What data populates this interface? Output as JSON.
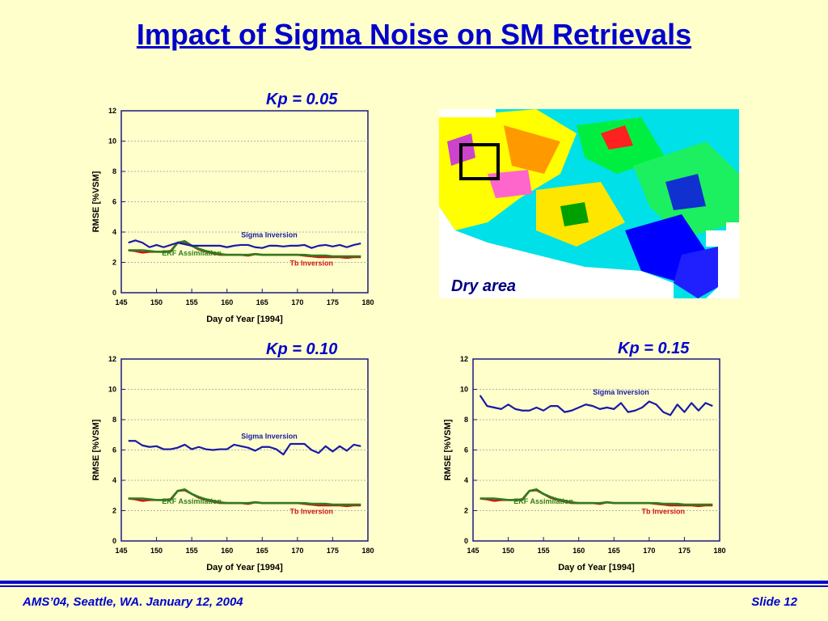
{
  "slide": {
    "title": "Impact of Sigma Noise on SM Retrievals",
    "map_caption": "Dry area",
    "footer_left": "AMS’04, Seattle, WA. January 12, 2004",
    "footer_right": "Slide 12"
  },
  "colors": {
    "title": "#0000cc",
    "background": "#ffffcc",
    "sigma": "#1a1aa6",
    "ekf": "#2e7d1e",
    "tb": "#d01414"
  },
  "chart_data": [
    {
      "type": "line",
      "title": "Kp = 0.05",
      "xlabel": "Day of Year [1994]",
      "ylabel": "RMSE [%VSM]",
      "xlim": [
        145,
        180
      ],
      "ylim": [
        0,
        12
      ],
      "xticks": [
        145,
        150,
        155,
        160,
        165,
        170,
        175,
        180
      ],
      "yticks": [
        0,
        2,
        4,
        6,
        8,
        10,
        12
      ],
      "grid": "horizontal",
      "x": [
        146,
        147,
        148,
        149,
        150,
        151,
        152,
        153,
        154,
        155,
        156,
        157,
        158,
        159,
        160,
        161,
        162,
        163,
        164,
        165,
        166,
        167,
        168,
        169,
        170,
        171,
        172,
        173,
        174,
        175,
        176,
        177,
        178,
        179
      ],
      "series": [
        {
          "name": "Sigma Inversion",
          "values": [
            3.3,
            3.45,
            3.3,
            3.0,
            3.15,
            3.0,
            3.15,
            3.3,
            3.2,
            3.1,
            3.1,
            3.1,
            3.1,
            3.1,
            3.0,
            3.1,
            3.15,
            3.15,
            3.0,
            2.95,
            3.1,
            3.1,
            3.05,
            3.1,
            3.1,
            3.15,
            2.95,
            3.1,
            3.15,
            3.05,
            3.15,
            3.0,
            3.15,
            3.25
          ]
        },
        {
          "name": "EKF Assimilation",
          "values": [
            2.8,
            2.8,
            2.8,
            2.75,
            2.7,
            2.7,
            2.7,
            3.3,
            3.4,
            3.1,
            2.9,
            2.75,
            2.65,
            2.55,
            2.5,
            2.5,
            2.5,
            2.5,
            2.55,
            2.5,
            2.5,
            2.5,
            2.5,
            2.5,
            2.5,
            2.5,
            2.45,
            2.45,
            2.45,
            2.4,
            2.4,
            2.4,
            2.4,
            2.4
          ]
        },
        {
          "name": "Tb Inversion",
          "values": [
            2.8,
            2.75,
            2.65,
            2.7,
            2.7,
            2.7,
            2.75,
            3.3,
            3.35,
            3.1,
            2.85,
            2.7,
            2.6,
            2.5,
            2.5,
            2.5,
            2.5,
            2.45,
            2.55,
            2.5,
            2.5,
            2.5,
            2.5,
            2.5,
            2.5,
            2.45,
            2.4,
            2.35,
            2.35,
            2.35,
            2.35,
            2.3,
            2.35,
            2.35
          ]
        }
      ]
    },
    {
      "type": "line",
      "title": "Kp = 0.10",
      "xlabel": "Day of Year [1994]",
      "ylabel": "RMSE [%VSM]",
      "xlim": [
        145,
        180
      ],
      "ylim": [
        0,
        12
      ],
      "xticks": [
        145,
        150,
        155,
        160,
        165,
        170,
        175,
        180
      ],
      "yticks": [
        0,
        2,
        4,
        6,
        8,
        10,
        12
      ],
      "grid": "horizontal",
      "x": [
        146,
        147,
        148,
        149,
        150,
        151,
        152,
        153,
        154,
        155,
        156,
        157,
        158,
        159,
        160,
        161,
        162,
        163,
        164,
        165,
        166,
        167,
        168,
        169,
        170,
        171,
        172,
        173,
        174,
        175,
        176,
        177,
        178,
        179
      ],
      "series": [
        {
          "name": "Sigma Inversion",
          "values": [
            6.6,
            6.6,
            6.3,
            6.2,
            6.25,
            6.05,
            6.05,
            6.15,
            6.35,
            6.05,
            6.2,
            6.05,
            6.0,
            6.05,
            6.05,
            6.35,
            6.25,
            6.15,
            5.95,
            6.2,
            6.2,
            6.05,
            5.7,
            6.4,
            6.4,
            6.4,
            6.0,
            5.8,
            6.25,
            5.9,
            6.25,
            5.95,
            6.35,
            6.25
          ]
        },
        {
          "name": "EKF Assimilation",
          "values": [
            2.8,
            2.8,
            2.8,
            2.75,
            2.7,
            2.7,
            2.7,
            3.3,
            3.4,
            3.1,
            2.9,
            2.75,
            2.65,
            2.55,
            2.5,
            2.5,
            2.5,
            2.5,
            2.55,
            2.5,
            2.5,
            2.5,
            2.5,
            2.5,
            2.5,
            2.5,
            2.45,
            2.45,
            2.45,
            2.4,
            2.4,
            2.4,
            2.4,
            2.4
          ]
        },
        {
          "name": "Tb Inversion",
          "values": [
            2.8,
            2.75,
            2.65,
            2.7,
            2.7,
            2.7,
            2.75,
            3.3,
            3.35,
            3.1,
            2.85,
            2.7,
            2.6,
            2.5,
            2.5,
            2.5,
            2.5,
            2.45,
            2.55,
            2.5,
            2.5,
            2.5,
            2.5,
            2.5,
            2.5,
            2.45,
            2.4,
            2.35,
            2.35,
            2.35,
            2.35,
            2.3,
            2.35,
            2.35
          ]
        }
      ]
    },
    {
      "type": "line",
      "title": "Kp = 0.15",
      "xlabel": "Day of Year [1994]",
      "ylabel": "RMSE [%VSM]",
      "xlim": [
        145,
        180
      ],
      "ylim": [
        0,
        12
      ],
      "xticks": [
        145,
        150,
        155,
        160,
        165,
        170,
        175,
        180
      ],
      "yticks": [
        0,
        2,
        4,
        6,
        8,
        10,
        12
      ],
      "grid": "horizontal",
      "x": [
        146,
        147,
        148,
        149,
        150,
        151,
        152,
        153,
        154,
        155,
        156,
        157,
        158,
        159,
        160,
        161,
        162,
        163,
        164,
        165,
        166,
        167,
        168,
        169,
        170,
        171,
        172,
        173,
        174,
        175,
        176,
        177,
        178,
        179
      ],
      "series": [
        {
          "name": "Sigma Inversion",
          "values": [
            9.6,
            8.9,
            8.8,
            8.7,
            9.0,
            8.7,
            8.6,
            8.6,
            8.8,
            8.6,
            8.9,
            8.9,
            8.5,
            8.6,
            8.8,
            9.0,
            8.9,
            8.7,
            8.8,
            8.7,
            9.1,
            8.5,
            8.6,
            8.8,
            9.2,
            9.0,
            8.5,
            8.3,
            9.0,
            8.5,
            9.1,
            8.6,
            9.1,
            8.9
          ]
        },
        {
          "name": "EKF Assimilation",
          "values": [
            2.8,
            2.8,
            2.8,
            2.75,
            2.7,
            2.7,
            2.7,
            3.3,
            3.4,
            3.1,
            2.9,
            2.75,
            2.65,
            2.55,
            2.5,
            2.5,
            2.5,
            2.5,
            2.55,
            2.5,
            2.5,
            2.5,
            2.5,
            2.5,
            2.5,
            2.5,
            2.45,
            2.45,
            2.45,
            2.4,
            2.4,
            2.4,
            2.4,
            2.4
          ]
        },
        {
          "name": "Tb Inversion",
          "values": [
            2.8,
            2.75,
            2.65,
            2.7,
            2.7,
            2.7,
            2.75,
            3.3,
            3.35,
            3.1,
            2.85,
            2.7,
            2.6,
            2.5,
            2.5,
            2.5,
            2.5,
            2.45,
            2.55,
            2.5,
            2.5,
            2.5,
            2.5,
            2.5,
            2.5,
            2.45,
            2.4,
            2.35,
            2.35,
            2.35,
            2.35,
            2.3,
            2.35,
            2.35
          ]
        }
      ]
    }
  ]
}
